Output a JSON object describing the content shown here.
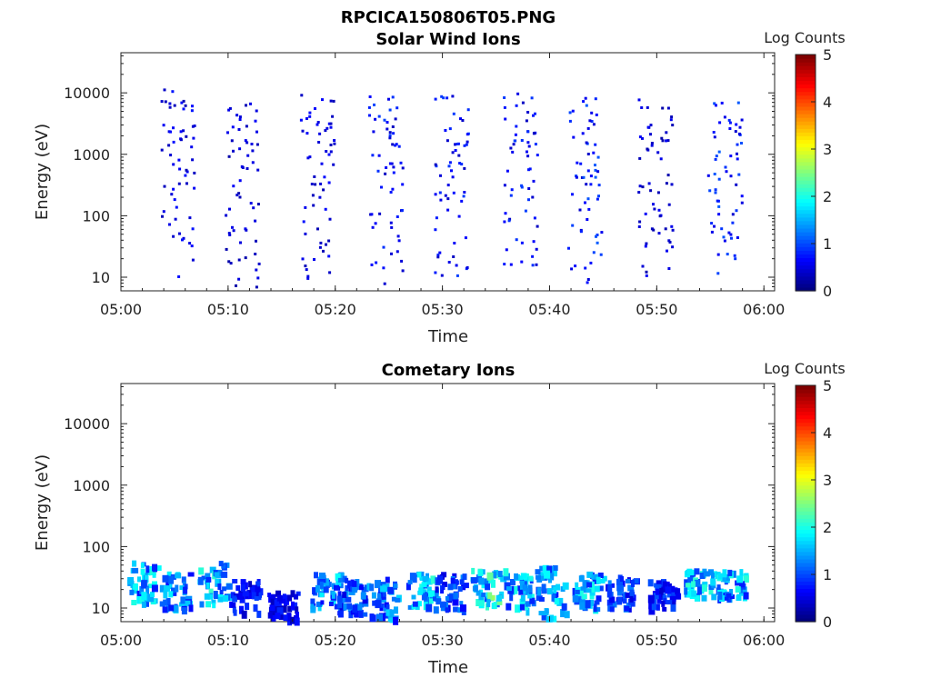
{
  "title": "RPCICA150806T05.PNG",
  "chart_data": [
    {
      "type": "heatmap",
      "title": "Solar Wind Ions",
      "xlabel": "Time",
      "ylabel": "Energy (eV)",
      "xlim": [
        "05:00",
        "06:01"
      ],
      "ylim": [
        6,
        45000
      ],
      "yscale": "log",
      "x_ticks": [
        "05:00",
        "05:10",
        "05:20",
        "05:30",
        "05:40",
        "05:50",
        "06:00"
      ],
      "y_ticks": [
        "10",
        "100",
        "1000",
        "10000"
      ],
      "colorbar": {
        "label": "Log Counts",
        "range": [
          0,
          5
        ],
        "ticks": [
          "0",
          "1",
          "2",
          "3",
          "4",
          "5"
        ]
      },
      "bursts": [
        {
          "t_min": 5.3,
          "lo": 10,
          "hi": 12000,
          "level": 0.6
        },
        {
          "t_min": 11.2,
          "lo": 7,
          "hi": 9000,
          "level": 0.5
        },
        {
          "t_min": 18.3,
          "lo": 7,
          "hi": 10000,
          "level": 0.6
        },
        {
          "t_min": 24.6,
          "lo": 8,
          "hi": 10000,
          "level": 0.8
        },
        {
          "t_min": 30.8,
          "lo": 7,
          "hi": 11000,
          "level": 0.8
        },
        {
          "t_min": 37.2,
          "lo": 10,
          "hi": 11000,
          "level": 0.8
        },
        {
          "t_min": 43.2,
          "lo": 8,
          "hi": 9000,
          "level": 0.9
        },
        {
          "t_min": 49.8,
          "lo": 10,
          "hi": 9000,
          "level": 0.5
        },
        {
          "t_min": 56.3,
          "lo": 10,
          "hi": 9000,
          "level": 0.9
        }
      ]
    },
    {
      "type": "heatmap",
      "title": "Cometary Ions",
      "xlabel": "Time",
      "ylabel": "Energy (eV)",
      "xlim": [
        "05:00",
        "06:01"
      ],
      "ylim": [
        6,
        45000
      ],
      "yscale": "log",
      "x_ticks": [
        "05:00",
        "05:10",
        "05:20",
        "05:30",
        "05:40",
        "05:50",
        "06:00"
      ],
      "y_ticks": [
        "10",
        "100",
        "1000",
        "10000"
      ],
      "colorbar": {
        "label": "Log Counts",
        "range": [
          0,
          5
        ],
        "ticks": [
          "0",
          "1",
          "2",
          "3",
          "4",
          "5"
        ]
      },
      "bursts": [
        {
          "t_min": 2.0,
          "lo": 12,
          "hi": 60,
          "level": 1.7
        },
        {
          "t_min": 5.0,
          "lo": 10,
          "hi": 40,
          "level": 1.6
        },
        {
          "t_min": 8.5,
          "lo": 12,
          "hi": 60,
          "level": 1.8
        },
        {
          "t_min": 11.5,
          "lo": 9,
          "hi": 30,
          "level": 0.8
        },
        {
          "t_min": 15.0,
          "lo": 7,
          "hi": 20,
          "level": 0.7
        },
        {
          "t_min": 19.0,
          "lo": 10,
          "hi": 40,
          "level": 1.6
        },
        {
          "t_min": 21.5,
          "lo": 8,
          "hi": 35,
          "level": 1.2
        },
        {
          "t_min": 24.3,
          "lo": 7,
          "hi": 35,
          "level": 1.4
        },
        {
          "t_min": 28.0,
          "lo": 10,
          "hi": 40,
          "level": 1.8
        },
        {
          "t_min": 30.5,
          "lo": 10,
          "hi": 40,
          "level": 1.1
        },
        {
          "t_min": 34.0,
          "lo": 12,
          "hi": 45,
          "level": 2.2
        },
        {
          "t_min": 37.0,
          "lo": 10,
          "hi": 45,
          "level": 1.7
        },
        {
          "t_min": 40.0,
          "lo": 7,
          "hi": 50,
          "level": 1.6
        },
        {
          "t_min": 43.5,
          "lo": 10,
          "hi": 40,
          "level": 1.7
        },
        {
          "t_min": 46.5,
          "lo": 10,
          "hi": 35,
          "level": 1.1
        },
        {
          "t_min": 50.5,
          "lo": 10,
          "hi": 30,
          "level": 0.9
        },
        {
          "t_min": 53.8,
          "lo": 15,
          "hi": 45,
          "level": 1.8
        },
        {
          "t_min": 56.8,
          "lo": 15,
          "hi": 45,
          "level": 1.8
        }
      ]
    }
  ]
}
